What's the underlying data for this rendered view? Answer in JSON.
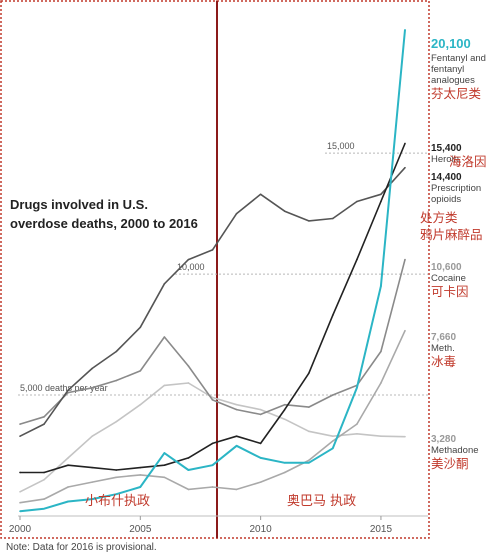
{
  "chart_data": {
    "type": "line",
    "title": "Drugs involved in U.S. overdose deaths, 2000 to 2016",
    "title_lines": [
      "Drugs involved in U.S.",
      "overdose deaths, 2000 to 2016"
    ],
    "xlabel": "",
    "ylabel": "",
    "xlim": [
      2000,
      2016
    ],
    "ylim": [
      0,
      21000
    ],
    "x_ticks": [
      {
        "value": 2000,
        "label": "2000"
      },
      {
        "value": 2005,
        "label": "2005"
      },
      {
        "value": 2010,
        "label": "2010"
      },
      {
        "value": 2015,
        "label": "2015"
      }
    ],
    "gridlines": [
      {
        "value": 5000,
        "label": "5,000 deaths per year"
      },
      {
        "value": 10000,
        "label": "10,000"
      },
      {
        "value": 15000,
        "label": "15,000"
      }
    ],
    "x": [
      2000,
      2001,
      2002,
      2003,
      2004,
      2005,
      2006,
      2007,
      2008,
      2009,
      2010,
      2011,
      2012,
      2013,
      2014,
      2015,
      2016
    ],
    "series": [
      {
        "key": "fentanyl",
        "color": "#2bb5c5",
        "values": [
          200,
          300,
          600,
          700,
          900,
          1200,
          2600,
          1900,
          2100,
          2900,
          2400,
          2200,
          2200,
          2800,
          5300,
          9500,
          20100
        ],
        "value_label": "20,100",
        "label_lines": [
          "Fentanyl and",
          "fentanyl",
          "analogues"
        ],
        "cn_label": "芬太尼类"
      },
      {
        "key": "heroin",
        "color": "#222222",
        "values": [
          1800,
          1800,
          2100,
          2000,
          1900,
          2000,
          2100,
          2400,
          3000,
          3300,
          3000,
          4400,
          5900,
          8300,
          10600,
          13000,
          15400
        ],
        "value_label": "15,400",
        "label_lines": [
          "Heroin"
        ],
        "cn_label": "海洛因"
      },
      {
        "key": "prescription-opioids",
        "color": "#555555",
        "values": [
          3300,
          3800,
          5200,
          6100,
          6800,
          7800,
          9600,
          10600,
          11000,
          12500,
          13300,
          12600,
          12200,
          12300,
          13000,
          13300,
          14400
        ],
        "value_label": "14,400",
        "label_lines": [
          "Prescription",
          "opioids"
        ],
        "cn_label_lines": [
          "处方类",
          "鸦片麻醉品"
        ]
      },
      {
        "key": "cocaine",
        "color": "#8a8a8a",
        "values": [
          3800,
          4100,
          5100,
          5300,
          5600,
          6000,
          7400,
          6200,
          4800,
          4400,
          4200,
          4600,
          4500,
          5000,
          5400,
          6800,
          10600
        ],
        "value_label": "10,600",
        "label_lines": [
          "Cocaine"
        ],
        "cn_label": "可卡因"
      },
      {
        "key": "meth",
        "color": "#a9a9a9",
        "values": [
          550,
          700,
          1200,
          1400,
          1600,
          1700,
          1600,
          1100,
          1200,
          1100,
          1400,
          1800,
          2300,
          3100,
          3800,
          5500,
          7660
        ],
        "value_label": "7,660",
        "label_lines": [
          "Meth."
        ],
        "cn_label": "冰毒"
      },
      {
        "key": "methadone",
        "color": "#c4c4c4",
        "values": [
          1000,
          1500,
          2400,
          3300,
          3900,
          4600,
          5400,
          5500,
          4900,
          4600,
          4400,
          4000,
          3500,
          3300,
          3400,
          3300,
          3280
        ],
        "value_label": "3,280",
        "label_lines": [
          "Methadone"
        ],
        "cn_label": "美沙酮"
      }
    ],
    "eras": [
      {
        "label": "小布什执政",
        "start": 2000,
        "end": 2009
      },
      {
        "label": "奥巴马 执政",
        "start": 2009,
        "end": 2017
      }
    ],
    "note": "Note: Data for 2016 is provisional.",
    "grid": false,
    "legend": "none"
  }
}
